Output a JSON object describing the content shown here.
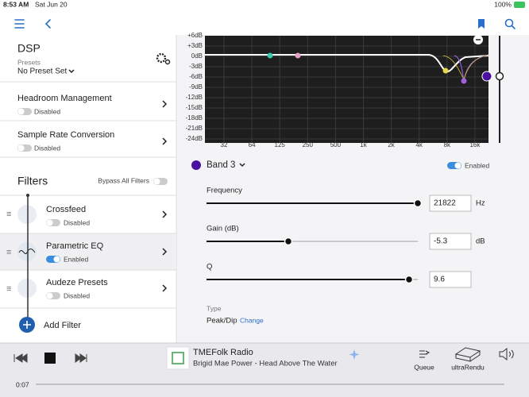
{
  "status_bar": {
    "time": "8:53 AM",
    "date": "Sat Jun 20",
    "battery": "100%"
  },
  "dsp": {
    "title": "DSP",
    "presets_label": "Presets",
    "preset": "No Preset Set"
  },
  "settings": [
    {
      "title": "Headroom Management",
      "status": "Disabled"
    },
    {
      "title": "Sample Rate Conversion",
      "status": "Disabled"
    }
  ],
  "filters": {
    "title": "Filters",
    "bypass_label": "Bypass All Filters",
    "items": [
      {
        "name": "Crossfeed",
        "status": "Disabled"
      },
      {
        "name": "Parametric EQ",
        "status": "Enabled"
      },
      {
        "name": "Audeze Presets",
        "status": "Disabled"
      }
    ],
    "add": "Add Filter"
  },
  "graph": {
    "y_labels": [
      "+6dB",
      "+3dB",
      "0dB",
      "-3dB",
      "-6dB",
      "-9dB",
      "-12dB",
      "-15dB",
      "-18dB",
      "-21dB",
      "-24dB"
    ],
    "x_labels": [
      "32",
      "64",
      "125",
      "250",
      "500",
      "1k",
      "2k",
      "4k",
      "8k",
      "16k"
    ]
  },
  "band": {
    "name": "Band 3",
    "enabled_label": "Enabled"
  },
  "params": [
    {
      "label": "Frequency",
      "value": "21822",
      "unit": "Hz"
    },
    {
      "label": "Gain (dB)",
      "value": "-5.3",
      "unit": "dB"
    },
    {
      "label": "Q",
      "value": "9.6",
      "unit": ""
    }
  ],
  "type": {
    "label": "Type",
    "value": "Peak/Dip",
    "change": "Change"
  },
  "player": {
    "station": "TMEFolk Radio",
    "track": "Brigid Mae Power - Head Above The Water",
    "queue": "Queue",
    "device": "ultraRendu",
    "elapsed": "0:07"
  }
}
